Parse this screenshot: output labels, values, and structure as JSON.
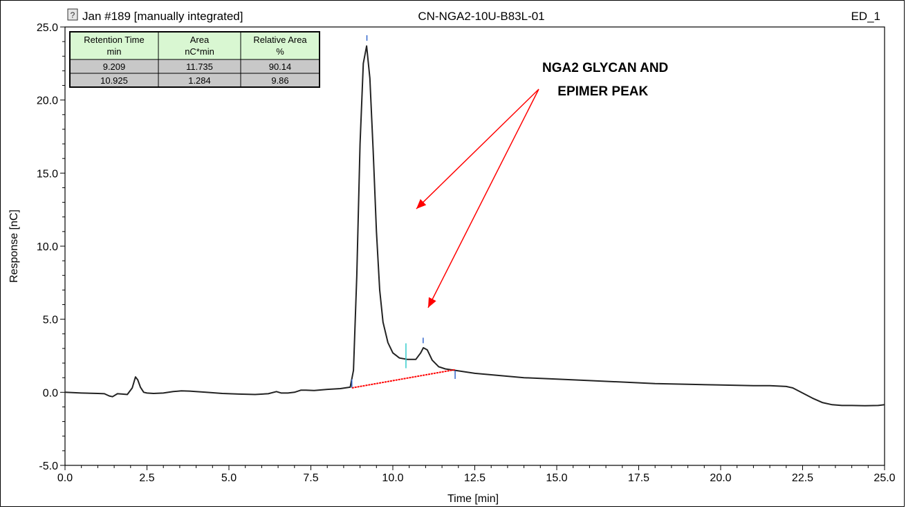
{
  "header": {
    "icon": "report-icon",
    "left_title": "Jan #189 [manually integrated]",
    "center_title": "CN-NGA2-10U-B83L-01",
    "right_label": "ED_1"
  },
  "table": {
    "headers": [
      [
        "Retention Time",
        "min"
      ],
      [
        "Area",
        "nC*min"
      ],
      [
        "Relative Area",
        "%"
      ]
    ],
    "rows": [
      [
        "9.209",
        "11.735",
        "90.14"
      ],
      [
        "10.925",
        "1.284",
        "9.86"
      ]
    ],
    "header_color": "#d9f7d2",
    "row_color": "#c8c8c8"
  },
  "annotation": {
    "line1": "NGA2 GLYCAN AND",
    "line2": " EPIMER PEAK",
    "arrow_color": "#ff0000"
  },
  "chart_data": {
    "type": "line",
    "xlabel": "Time [min]",
    "ylabel": "Response [nC]",
    "xlim": [
      0.0,
      25.0
    ],
    "ylim": [
      -5.0,
      25.0
    ],
    "x_ticks": [
      "0.0",
      "2.5",
      "5.0",
      "7.5",
      "10.0",
      "12.5",
      "15.0",
      "17.5",
      "20.0",
      "22.5",
      "25.0"
    ],
    "y_ticks": [
      "-5.0",
      "0.0",
      "5.0",
      "10.0",
      "15.0",
      "20.0",
      "25.0"
    ],
    "series": [
      {
        "color": "#222222",
        "x": [
          0.0,
          0.5,
          1.0,
          1.2,
          1.35,
          1.45,
          1.6,
          1.75,
          1.9,
          2.05,
          2.15,
          2.22,
          2.3,
          2.4,
          2.5,
          2.7,
          3.0,
          3.3,
          3.55,
          3.8,
          4.3,
          4.8,
          5.3,
          5.8,
          6.2,
          6.45,
          6.6,
          6.8,
          7.0,
          7.2,
          7.35,
          7.6,
          8.0,
          8.4,
          8.7,
          8.8,
          8.9,
          9.0,
          9.1,
          9.2,
          9.3,
          9.4,
          9.5,
          9.6,
          9.7,
          9.85,
          10.0,
          10.2,
          10.45,
          10.7,
          10.85,
          10.93,
          11.05,
          11.2,
          11.4,
          11.6,
          11.9,
          12.2,
          12.5,
          13.0,
          13.5,
          14.0,
          15.0,
          16.0,
          17.0,
          18.0,
          19.0,
          20.0,
          21.0,
          21.5,
          22.0,
          22.2,
          22.5,
          22.8,
          23.1,
          23.4,
          23.7,
          24.0,
          24.4,
          24.8,
          25.0
        ],
        "y": [
          0.0,
          -0.05,
          -0.08,
          -0.1,
          -0.25,
          -0.3,
          -0.1,
          -0.12,
          -0.15,
          0.3,
          1.05,
          0.85,
          0.35,
          0.0,
          -0.05,
          -0.08,
          -0.05,
          0.05,
          0.1,
          0.08,
          0.0,
          -0.08,
          -0.12,
          -0.15,
          -0.1,
          0.05,
          -0.05,
          -0.05,
          0.0,
          0.15,
          0.15,
          0.12,
          0.2,
          0.25,
          0.35,
          1.5,
          8.0,
          17.0,
          22.5,
          23.7,
          21.5,
          16.5,
          11.0,
          7.0,
          4.8,
          3.4,
          2.7,
          2.35,
          2.25,
          2.25,
          2.7,
          3.05,
          2.9,
          2.2,
          1.75,
          1.6,
          1.5,
          1.4,
          1.3,
          1.2,
          1.1,
          1.0,
          0.9,
          0.8,
          0.7,
          0.6,
          0.55,
          0.5,
          0.45,
          0.45,
          0.4,
          0.3,
          -0.05,
          -0.4,
          -0.7,
          -0.85,
          -0.9,
          -0.9,
          -0.92,
          -0.9,
          -0.85
        ]
      }
    ],
    "baseline": {
      "x": [
        8.75,
        11.9
      ],
      "y": [
        0.3,
        1.55
      ],
      "color": "#ff0000"
    },
    "peak_markers": [
      {
        "x": 9.209,
        "y": 24.2
      },
      {
        "x": 10.925,
        "y": 3.5
      }
    ],
    "boundary_markers": [
      {
        "x": 8.75,
        "y": 0.6
      },
      {
        "x": 10.4,
        "y": 2.5,
        "color": "#33cccc"
      },
      {
        "x": 11.9,
        "y": 1.2
      }
    ]
  }
}
